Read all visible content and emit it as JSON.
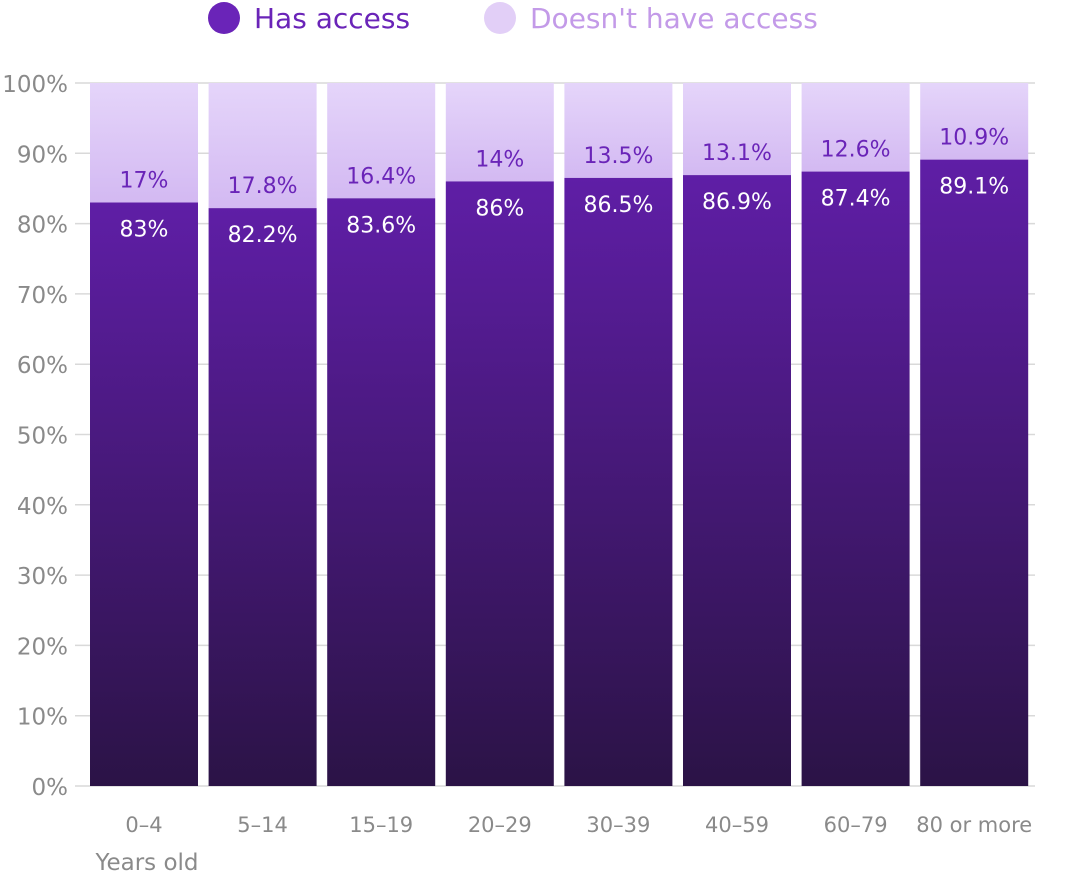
{
  "legend": {
    "has_access_label": "Has access",
    "no_access_label": "Doesn't have access"
  },
  "colors": {
    "has_access_top": "#5f1ea6",
    "has_access_bottom": "#2b1346",
    "no_access_top": "#e5d5fa",
    "no_access_bottom": "#d3b9f2",
    "has_access_legend": "#6a24b8",
    "no_access_legend": "#e2cff7",
    "no_access_text": "#c39ae8",
    "gridline": "#d9d9d9",
    "tick_text": "#8a8a8a",
    "label_on_dark": "#ffffff",
    "label_on_light": "#6a24b8"
  },
  "chart_data": {
    "type": "bar",
    "stacked": true,
    "categories": [
      "0–4",
      "5–14",
      "15–19",
      "20–29",
      "30–39",
      "40–59",
      "60–79",
      "80 or more"
    ],
    "xlabel": "Years old",
    "ylabel": "",
    "ylim": [
      0,
      100
    ],
    "yticks": [
      "0%",
      "10%",
      "20%",
      "30%",
      "40%",
      "50%",
      "60%",
      "70%",
      "80%",
      "90%",
      "100%"
    ],
    "grid": true,
    "legend_position": "top",
    "series": [
      {
        "name": "Has access",
        "values": [
          83,
          82.2,
          83.6,
          86,
          86.5,
          86.9,
          87.4,
          89.1
        ],
        "labels": [
          "83%",
          "82.2%",
          "83.6%",
          "86%",
          "86.5%",
          "86.9%",
          "87.4%",
          "89.1%"
        ]
      },
      {
        "name": "Doesn't have access",
        "values": [
          17,
          17.8,
          16.4,
          14,
          13.5,
          13.1,
          12.6,
          10.9
        ],
        "labels": [
          "17%",
          "17.8%",
          "16.4%",
          "14%",
          "13.5%",
          "13.1%",
          "12.6%",
          "10.9%"
        ]
      }
    ]
  }
}
